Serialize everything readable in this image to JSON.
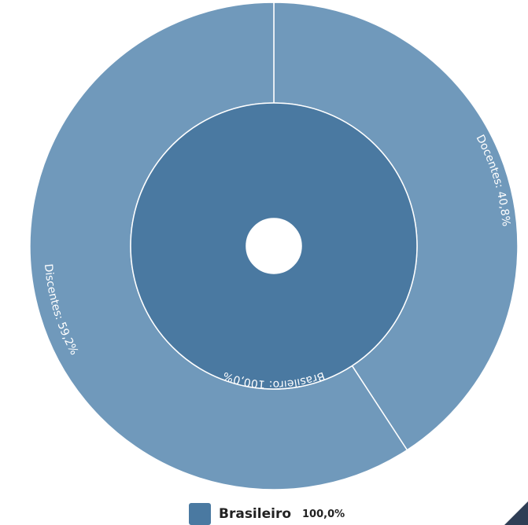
{
  "chart_data": {
    "type": "sunburst",
    "inner": [
      {
        "name": "Brasileiro",
        "value": 100.0,
        "label": "Brasileiro: 100,0%",
        "color": "#4a79a1"
      }
    ],
    "outer": [
      {
        "name": "Docentes",
        "value": 40.8,
        "label": "Docentes: 40,8%",
        "color": "#7099bb"
      },
      {
        "name": "Discentes",
        "value": 59.2,
        "label": "Discentes: 59,2%",
        "color": "#7099bb"
      }
    ],
    "legend": [
      {
        "name": "Brasileiro",
        "value_text": "100,0%",
        "color": "#4a79a1"
      }
    ]
  }
}
